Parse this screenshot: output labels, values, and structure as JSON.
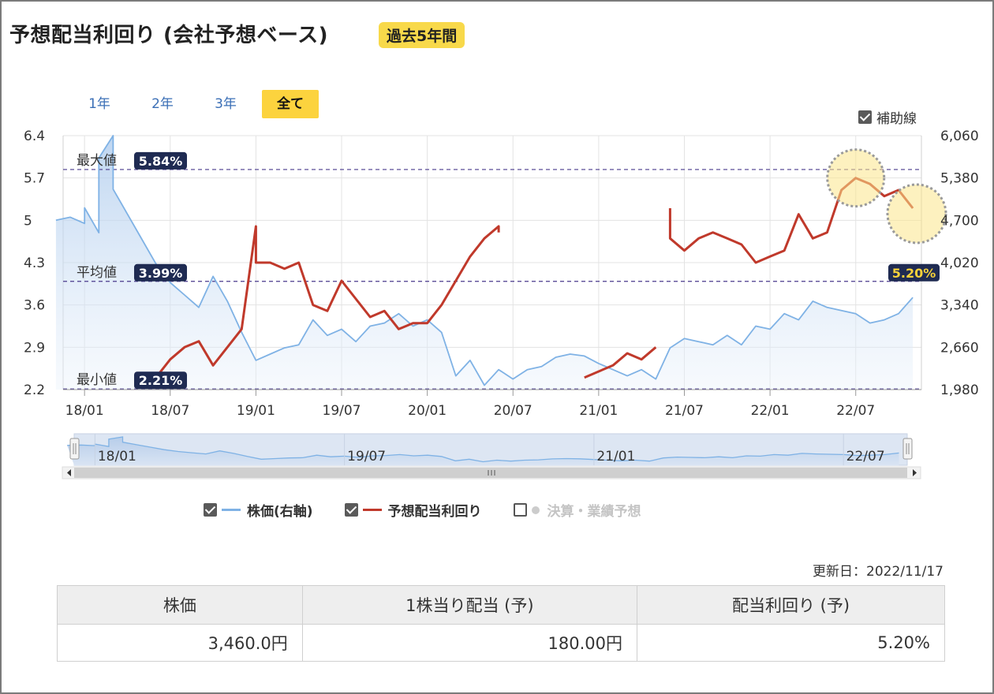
{
  "title": "予想配当利回り (会社予想ベース)",
  "period_badge": "過去5年間",
  "range_buttons": [
    {
      "label": "1年",
      "active": false
    },
    {
      "label": "2年",
      "active": false
    },
    {
      "label": "3年",
      "active": false
    },
    {
      "label": "全て",
      "active": true
    }
  ],
  "aux_lines_label": "補助線",
  "chart_data": {
    "type": "line",
    "left_axis": {
      "ticks": [
        "6.4",
        "5.7",
        "5",
        "4.3",
        "3.6",
        "2.9",
        "2.2"
      ],
      "range": [
        2.2,
        6.4
      ]
    },
    "right_axis": {
      "ticks": [
        "6,060",
        "5,380",
        "4,700",
        "4,020",
        "3,340",
        "2,660",
        "1,980"
      ],
      "range": [
        1980,
        6060
      ]
    },
    "x_ticks": [
      "18/01",
      "18/07",
      "19/01",
      "19/07",
      "20/01",
      "20/07",
      "21/01",
      "21/07",
      "22/01",
      "22/07"
    ],
    "navigator_ticks": [
      "18/01",
      "19/07",
      "21/01",
      "22/07"
    ],
    "reference_lines": [
      {
        "label": "最大値",
        "value": 5.84,
        "badge": "5.84%"
      },
      {
        "label": "平均値",
        "value": 3.99,
        "badge": "3.99%"
      },
      {
        "label": "最小値",
        "value": 2.21,
        "badge": "2.21%"
      }
    ],
    "current_badge": "5.20%",
    "series": [
      {
        "name": "株価(右軸)",
        "axis": "right",
        "color": "#7fb2e5",
        "points": [
          [
            "17/11",
            4700
          ],
          [
            "17/12",
            4750
          ],
          [
            "18/01",
            4650
          ],
          [
            "18/01",
            4900
          ],
          [
            "18/02",
            4500
          ],
          [
            "18/02",
            5700
          ],
          [
            "18/03",
            6060
          ],
          [
            "18/03",
            5200
          ],
          [
            "18/04",
            4800
          ],
          [
            "18/05",
            4400
          ],
          [
            "18/06",
            4000
          ],
          [
            "18/07",
            3700
          ],
          [
            "18/08",
            3500
          ],
          [
            "18/09",
            3300
          ],
          [
            "18/10",
            3800
          ],
          [
            "18/11",
            3400
          ],
          [
            "18/12",
            2900
          ],
          [
            "19/01",
            2450
          ],
          [
            "19/02",
            2550
          ],
          [
            "19/03",
            2650
          ],
          [
            "19/04",
            2700
          ],
          [
            "19/05",
            3100
          ],
          [
            "19/06",
            2850
          ],
          [
            "19/07",
            2950
          ],
          [
            "19/08",
            2750
          ],
          [
            "19/09",
            3000
          ],
          [
            "19/10",
            3050
          ],
          [
            "19/11",
            3200
          ],
          [
            "19/12",
            3000
          ],
          [
            "20/01",
            3100
          ],
          [
            "20/02",
            2900
          ],
          [
            "20/03",
            2200
          ],
          [
            "20/04",
            2450
          ],
          [
            "20/05",
            2050
          ],
          [
            "20/06",
            2300
          ],
          [
            "20/07",
            2150
          ],
          [
            "20/08",
            2300
          ],
          [
            "20/09",
            2350
          ],
          [
            "20/10",
            2500
          ],
          [
            "20/11",
            2550
          ],
          [
            "20/12",
            2520
          ],
          [
            "21/01",
            2400
          ],
          [
            "21/02",
            2300
          ],
          [
            "21/03",
            2200
          ],
          [
            "21/04",
            2300
          ],
          [
            "21/05",
            2150
          ],
          [
            "21/06",
            2650
          ],
          [
            "21/07",
            2800
          ],
          [
            "21/08",
            2750
          ],
          [
            "21/09",
            2700
          ],
          [
            "21/10",
            2850
          ],
          [
            "21/11",
            2700
          ],
          [
            "21/12",
            3000
          ],
          [
            "22/01",
            2950
          ],
          [
            "22/02",
            3200
          ],
          [
            "22/03",
            3100
          ],
          [
            "22/04",
            3400
          ],
          [
            "22/05",
            3300
          ],
          [
            "22/06",
            3250
          ],
          [
            "22/07",
            3200
          ],
          [
            "22/08",
            3050
          ],
          [
            "22/09",
            3100
          ],
          [
            "22/10",
            3200
          ],
          [
            "22/11",
            3460
          ]
        ]
      },
      {
        "name": "予想配当利回り",
        "axis": "left",
        "color": "#c0392b",
        "points": [
          [
            "18/06",
            2.4
          ],
          [
            "18/07",
            2.7
          ],
          [
            "18/08",
            2.9
          ],
          [
            "18/09",
            3.0
          ],
          [
            "18/10",
            2.6
          ],
          [
            "18/11",
            2.9
          ],
          [
            "18/12",
            3.2
          ],
          [
            "19/01",
            4.9
          ],
          [
            "19/01",
            4.3
          ],
          [
            "19/02",
            4.3
          ],
          [
            "19/03",
            4.2
          ],
          [
            "19/04",
            4.3
          ],
          [
            "19/05",
            3.6
          ],
          [
            "19/06",
            3.5
          ],
          [
            "19/07",
            4.0
          ],
          [
            "19/08",
            3.7
          ],
          [
            "19/09",
            3.4
          ],
          [
            "19/10",
            3.5
          ],
          [
            "19/11",
            3.2
          ],
          [
            "19/12",
            3.3
          ],
          [
            "20/01",
            3.3
          ],
          [
            "20/02",
            3.6
          ],
          [
            "20/03",
            4.0
          ],
          [
            "20/04",
            4.4
          ],
          [
            "20/05",
            4.7
          ],
          [
            "20/06",
            4.9
          ],
          [
            "20/06",
            4.8
          ],
          [
            "20/11",
            null
          ],
          [
            "20/12",
            2.4
          ],
          [
            "21/01",
            2.5
          ],
          [
            "21/02",
            2.6
          ],
          [
            "21/03",
            2.8
          ],
          [
            "21/04",
            2.7
          ],
          [
            "21/05",
            2.9
          ],
          [
            "21/05",
            null
          ],
          [
            "21/06",
            5.2
          ],
          [
            "21/06",
            4.7
          ],
          [
            "21/07",
            4.5
          ],
          [
            "21/08",
            4.7
          ],
          [
            "21/09",
            4.8
          ],
          [
            "21/10",
            4.7
          ],
          [
            "21/11",
            4.6
          ],
          [
            "21/12",
            4.3
          ],
          [
            "22/01",
            4.4
          ],
          [
            "22/02",
            4.5
          ],
          [
            "22/03",
            5.1
          ],
          [
            "22/04",
            4.7
          ],
          [
            "22/05",
            4.8
          ],
          [
            "22/06",
            5.5
          ],
          [
            "22/07",
            5.7
          ],
          [
            "22/08",
            5.6
          ],
          [
            "22/09",
            5.4
          ],
          [
            "22/10",
            5.5
          ],
          [
            "22/11",
            5.2
          ]
        ]
      }
    ]
  },
  "legend": [
    {
      "label": "株価(右軸)",
      "checked": true,
      "color": "#7fb2e5"
    },
    {
      "label": "予想配当利回り",
      "checked": true,
      "color": "#c0392b"
    },
    {
      "label": "決算・業績予想",
      "checked": false,
      "color": "#cccccc"
    }
  ],
  "updated": "更新日：2022/11/17",
  "summary_table": {
    "headers": [
      "株価",
      "1株当り配当 (予)",
      "配当利回り (予)"
    ],
    "values": [
      "3,460.0円",
      "180.00円",
      "5.20%"
    ]
  }
}
